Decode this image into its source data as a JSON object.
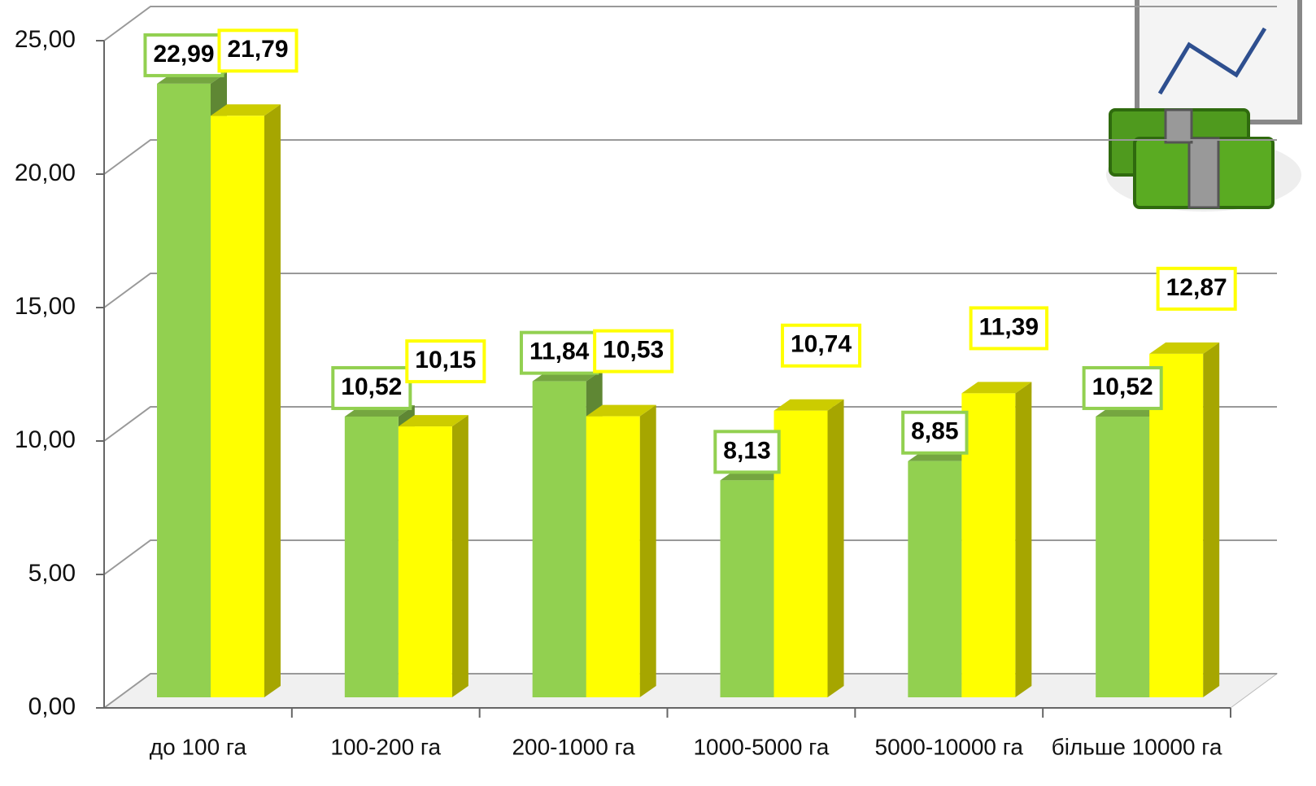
{
  "chart_data": {
    "type": "bar3d",
    "categories": [
      "до 100 га",
      "100-200 га",
      "200-1000 га",
      "1000-5000 га",
      "5000-10000 га",
      "більше 10000 га"
    ],
    "series": [
      {
        "color": "#92d050",
        "values": [
          22.99,
          10.52,
          11.84,
          8.13,
          8.85,
          10.52
        ],
        "value_labels": [
          "22,99",
          "10,52",
          "11,84",
          "8,13",
          "8,85",
          "10,52"
        ]
      },
      {
        "color": "#ffff00",
        "values": [
          21.79,
          10.15,
          10.53,
          10.74,
          11.39,
          12.87
        ],
        "value_labels": [
          "21,79",
          "10,15",
          "10,53",
          "10,74",
          "11,39",
          "12,87"
        ]
      }
    ],
    "ylim": [
      0,
      25
    ],
    "yticks": [
      {
        "value": 0,
        "label": "0,00"
      },
      {
        "value": 5,
        "label": "5,00"
      },
      {
        "value": 10,
        "label": "10,00"
      },
      {
        "value": 15,
        "label": "15,00"
      },
      {
        "value": 20,
        "label": "20,00"
      },
      {
        "value": 25,
        "label": "25,00"
      }
    ],
    "grid": true
  }
}
